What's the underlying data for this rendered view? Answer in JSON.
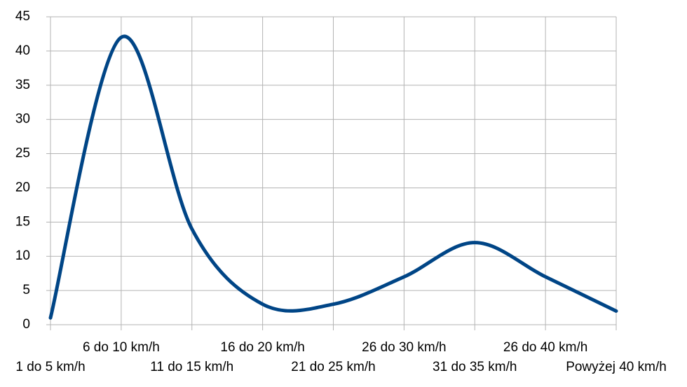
{
  "chart_data": {
    "type": "line",
    "categories": [
      "1 do 5 km/h",
      "6 do 10 km/h",
      "11 do 15 km/h",
      "16 do 20 km/h",
      "21 do 25 km/h",
      "26 do 30 km/h",
      "31 do 35 km/h",
      "26 do 40 km/h",
      "Powyżej 40 km/h"
    ],
    "values": [
      1,
      42,
      14,
      3,
      3,
      7,
      12,
      7,
      2
    ],
    "color": "#004586",
    "smooth": true,
    "ylim": [
      0,
      45
    ],
    "yticks": [
      0,
      5,
      10,
      15,
      20,
      25,
      30,
      35,
      40,
      45
    ],
    "grid": true
  }
}
